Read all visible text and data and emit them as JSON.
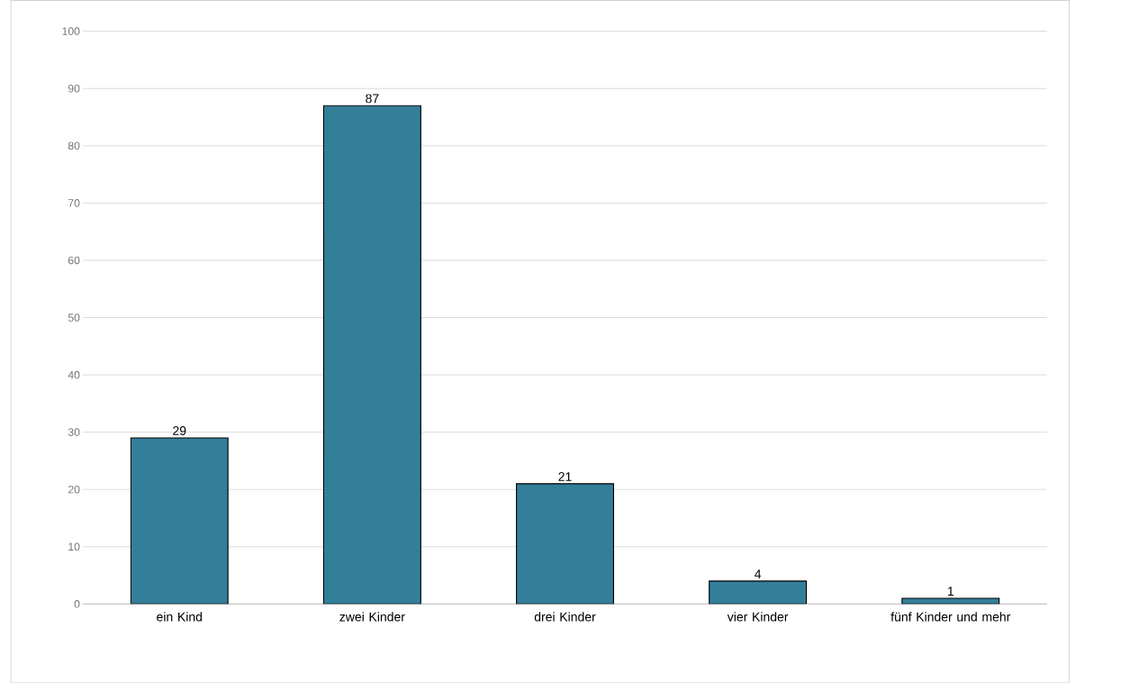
{
  "chart_data": {
    "type": "bar",
    "categories": [
      "ein Kind",
      "zwei Kinder",
      "drei Kinder",
      "vier Kinder",
      "fünf Kinder und mehr"
    ],
    "values": [
      29,
      87,
      21,
      4,
      1
    ],
    "color": "#337f99",
    "ylim": [
      0,
      100
    ],
    "yticks": [
      0,
      10,
      20,
      30,
      40,
      50,
      60,
      70,
      80,
      90,
      100
    ],
    "grid": "y",
    "data_labels": true
  }
}
